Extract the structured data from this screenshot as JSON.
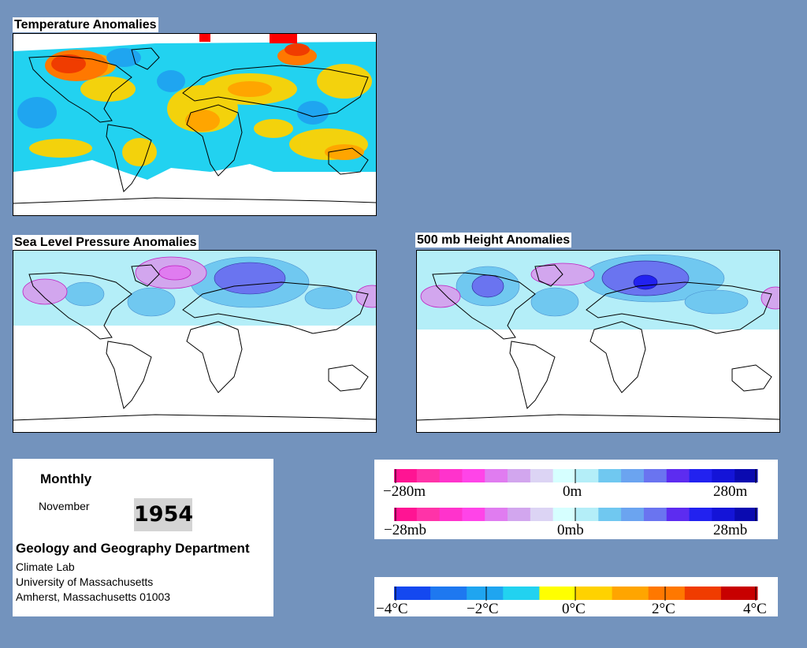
{
  "panels": {
    "temperature": {
      "title": "Temperature Anomalies"
    },
    "slp": {
      "title": "Sea Level Pressure Anomalies"
    },
    "height500": {
      "title": "500 mb Height Anomalies"
    }
  },
  "info": {
    "period": "Monthly",
    "month": "November",
    "year": "1954",
    "department": "Geology and Geography Department",
    "lab": "Climate Lab",
    "university": "University of Massachusetts",
    "address": "Amherst, Massachusetts 01003"
  },
  "legends": {
    "height": {
      "left": "−280m",
      "center": "0m",
      "right": "280m"
    },
    "pressure": {
      "left": "−28mb",
      "center": "0mb",
      "right": "28mb"
    },
    "temperature": {
      "t0": "−4°C",
      "t1": "−2°C",
      "t2": "0°C",
      "t3": "2°C",
      "t4": "4°C"
    }
  },
  "colors": {
    "height_pressure_scale": [
      "#ff1493",
      "#ff33a8",
      "#ff33cc",
      "#ff44e8",
      "#e07cf0",
      "#d2a6ee",
      "#dcd4f4",
      "#d6ffff",
      "#b4eef8",
      "#70c8f0",
      "#6ba4f0",
      "#6a74f0",
      "#5d2cf0",
      "#2222f0",
      "#1414d8",
      "#0a0ab0"
    ],
    "temperature_scale": [
      "#1448f0",
      "#1e78f0",
      "#1fa5f0",
      "#22d2f0",
      "#ffff00",
      "#ffd200",
      "#ffa500",
      "#ff7800",
      "#f03c00",
      "#c80000"
    ]
  }
}
